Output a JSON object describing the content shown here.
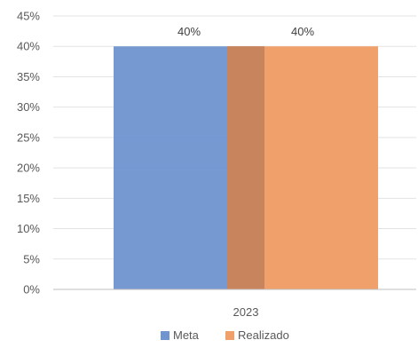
{
  "chart_data": {
    "type": "bar",
    "categories": [
      "2023"
    ],
    "series": [
      {
        "name": "Meta",
        "values": [
          40
        ],
        "color": "#7094d0",
        "opacity": 0.95
      },
      {
        "name": "Realizado",
        "values": [
          40
        ],
        "color": "#f0a06a",
        "opacity": 1
      }
    ],
    "value_format": "percent",
    "ylim": [
      0,
      45
    ],
    "yticks": [
      0,
      5,
      10,
      15,
      20,
      25,
      30,
      35,
      40,
      45
    ],
    "ytick_labels": [
      "0%",
      "5%",
      "10%",
      "15%",
      "20%",
      "25%",
      "30%",
      "35%",
      "40%",
      "45%"
    ],
    "data_labels": [
      "40%",
      "40%"
    ],
    "overlap_color": "#c8845c",
    "gridlines": true,
    "legend_position": "bottom",
    "title": "",
    "xlabel": "",
    "ylabel": ""
  }
}
